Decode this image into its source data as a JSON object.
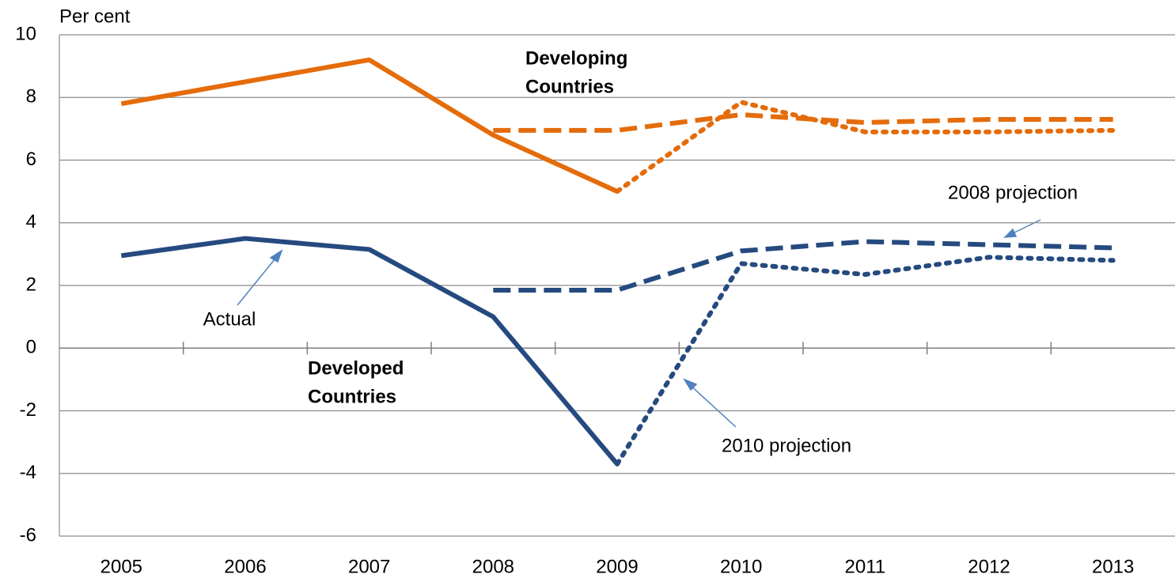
{
  "chart_data": {
    "type": "line",
    "ylabel": "Per cent",
    "categories": [
      "2005",
      "2006",
      "2007",
      "2008",
      "2009",
      "2010",
      "2011",
      "2012",
      "2013"
    ],
    "series": [
      {
        "color": "#e46c0a",
        "dash": "solid",
        "values": [
          7.8,
          8.5,
          9.2,
          6.8,
          5.0,
          null,
          null,
          null,
          null
        ]
      },
      {
        "color": "#e46c0a",
        "dash": "dashed",
        "values": [
          null,
          null,
          null,
          6.95,
          6.95,
          7.45,
          7.2,
          7.3,
          7.3
        ]
      },
      {
        "color": "#e46c0a",
        "dash": "dotted",
        "values": [
          null,
          null,
          null,
          null,
          5.0,
          7.85,
          6.9,
          6.9,
          6.95
        ]
      },
      {
        "color": "#254a7f",
        "dash": "solid",
        "values": [
          2.95,
          3.5,
          3.15,
          1.0,
          -3.7,
          null,
          null,
          null,
          null
        ]
      },
      {
        "color": "#254a7f",
        "dash": "dashed",
        "values": [
          null,
          null,
          null,
          1.85,
          1.85,
          3.1,
          3.4,
          3.3,
          3.2
        ]
      },
      {
        "color": "#254a7f",
        "dash": "dotted",
        "values": [
          null,
          null,
          null,
          null,
          -3.7,
          2.7,
          2.35,
          2.9,
          2.8
        ]
      }
    ],
    "annotations": [
      [
        "Developing",
        "Countries"
      ],
      [
        "Developed",
        "Countries"
      ],
      [
        "Actual"
      ],
      [
        "2008 projection"
      ],
      [
        "2010 projection"
      ]
    ],
    "ylim": [
      -6,
      10
    ],
    "yticks": [
      -6,
      -4,
      -2,
      0,
      2,
      4,
      6,
      8,
      10
    ],
    "grid": true
  }
}
